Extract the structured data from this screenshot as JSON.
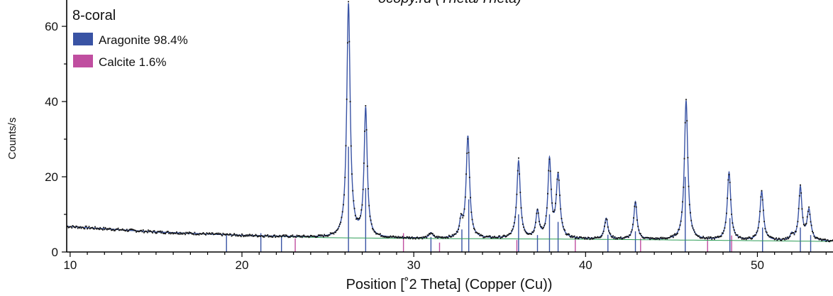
{
  "chart_data": {
    "type": "line",
    "title_fragment": "ocopy.rd (Theta/Theta)",
    "xlabel": "Position [˚2 Theta] (Copper (Cu))",
    "ylabel": "Counts/s",
    "xlim": [
      9.8,
      54.4
    ],
    "ylim": [
      0,
      67
    ],
    "x_ticks": [
      10,
      20,
      30,
      40,
      50
    ],
    "y_ticks": [
      0,
      20,
      40,
      60
    ],
    "grid": false,
    "legend": {
      "title": "8-coral",
      "placement": "top-left",
      "entries": [
        {
          "label": "Aragonite 98.4%",
          "color": "#3953a4"
        },
        {
          "label": "Calcite 1.6%",
          "color": "#c04ea0"
        }
      ]
    },
    "colors": {
      "profile": "#3953a4",
      "observed": "#111111",
      "background": "#2e9e57",
      "aragonite": "#3953a4",
      "calcite": "#c04ea0"
    },
    "peaks": [
      {
        "x": 26.2,
        "h": 62.0,
        "w": 0.12
      },
      {
        "x": 27.2,
        "h": 34.0,
        "w": 0.11
      },
      {
        "x": 31.0,
        "h": 1.4,
        "w": 0.12
      },
      {
        "x": 32.75,
        "h": 4.0,
        "w": 0.11
      },
      {
        "x": 33.15,
        "h": 27.0,
        "w": 0.12
      },
      {
        "x": 36.1,
        "h": 20.5,
        "w": 0.12
      },
      {
        "x": 37.2,
        "h": 7.0,
        "w": 0.11
      },
      {
        "x": 37.9,
        "h": 20.5,
        "w": 0.11
      },
      {
        "x": 38.4,
        "h": 16.5,
        "w": 0.13
      },
      {
        "x": 41.2,
        "h": 5.5,
        "w": 0.12
      },
      {
        "x": 42.9,
        "h": 10.0,
        "w": 0.11
      },
      {
        "x": 45.85,
        "h": 37.0,
        "w": 0.12
      },
      {
        "x": 48.35,
        "h": 18.0,
        "w": 0.12
      },
      {
        "x": 50.25,
        "h": 13.0,
        "w": 0.12
      },
      {
        "x": 52.0,
        "h": 1.5,
        "w": 0.11
      },
      {
        "x": 52.5,
        "h": 14.0,
        "w": 0.11
      },
      {
        "x": 53.0,
        "h": 8.0,
        "w": 0.13
      }
    ],
    "background_curve": [
      {
        "x": 9.8,
        "y": 6.8
      },
      {
        "x": 15,
        "y": 5.3
      },
      {
        "x": 20,
        "y": 4.4
      },
      {
        "x": 25,
        "y": 3.8
      },
      {
        "x": 30,
        "y": 3.6
      },
      {
        "x": 40,
        "y": 3.4
      },
      {
        "x": 50,
        "y": 3.0
      },
      {
        "x": 54.4,
        "y": 2.8
      }
    ],
    "aragonite_refs": [
      {
        "x": 19.1,
        "h": 4.4
      },
      {
        "x": 21.1,
        "h": 5.0
      },
      {
        "x": 22.3,
        "h": 4.2
      },
      {
        "x": 26.2,
        "h": 28
      },
      {
        "x": 27.2,
        "h": 17
      },
      {
        "x": 31.0,
        "h": 4.0
      },
      {
        "x": 32.8,
        "h": 6.0
      },
      {
        "x": 33.2,
        "h": 14
      },
      {
        "x": 36.1,
        "h": 10
      },
      {
        "x": 37.2,
        "h": 4.5
      },
      {
        "x": 37.9,
        "h": 10
      },
      {
        "x": 38.4,
        "h": 8
      },
      {
        "x": 41.3,
        "h": 4.6
      },
      {
        "x": 42.9,
        "h": 5.5
      },
      {
        "x": 45.8,
        "h": 20
      },
      {
        "x": 48.4,
        "h": 9
      },
      {
        "x": 50.3,
        "h": 6.5
      },
      {
        "x": 52.5,
        "h": 6.5
      },
      {
        "x": 53.1,
        "h": 4.5
      }
    ],
    "calcite_refs": [
      {
        "x": 23.1,
        "h": 3.6
      },
      {
        "x": 29.4,
        "h": 5.0
      },
      {
        "x": 31.5,
        "h": 2.5
      },
      {
        "x": 36.0,
        "h": 3.2
      },
      {
        "x": 39.4,
        "h": 3.6
      },
      {
        "x": 43.2,
        "h": 3.6
      },
      {
        "x": 47.1,
        "h": 3.6
      },
      {
        "x": 48.5,
        "h": 4.4
      }
    ]
  }
}
